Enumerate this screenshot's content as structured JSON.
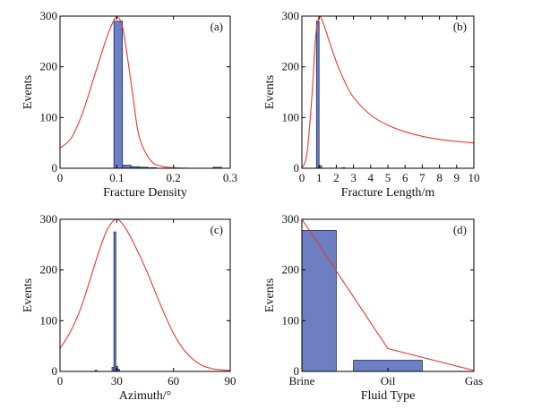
{
  "colors": {
    "bar": "#6b7fc2",
    "bar_stroke": "#1e2a5a",
    "curve": "#e8382f",
    "axis": "#000000"
  },
  "chart_data": [
    {
      "id": "a",
      "type": "bar",
      "panel_label": "(a)",
      "xlabel": "Fracture Density",
      "ylabel": "Events",
      "xlim": [
        0,
        0.3
      ],
      "ylim": [
        0,
        300
      ],
      "xticks": [
        0,
        0.1,
        0.2,
        0.3
      ],
      "xtick_labels": [
        "0",
        "0.1",
        "0.2",
        "0.3"
      ],
      "yticks": [
        0,
        100,
        200,
        300
      ],
      "ytick_labels": [
        "0",
        "100",
        "200",
        "300"
      ],
      "bars": [
        {
          "x0": 0.095,
          "x1": 0.11,
          "value": 290
        },
        {
          "x0": 0.11,
          "x1": 0.125,
          "value": 6
        },
        {
          "x0": 0.125,
          "x1": 0.14,
          "value": 3
        },
        {
          "x0": 0.14,
          "x1": 0.155,
          "value": 2
        },
        {
          "x0": 0.155,
          "x1": 0.17,
          "value": 1
        },
        {
          "x0": 0.27,
          "x1": 0.285,
          "value": 2
        }
      ],
      "curve": {
        "x": [
          0,
          0.02,
          0.04,
          0.06,
          0.08,
          0.09,
          0.1,
          0.11,
          0.12,
          0.13,
          0.14,
          0.16,
          0.18,
          0.2,
          0.23
        ],
        "y": [
          40,
          60,
          110,
          180,
          250,
          280,
          298,
          280,
          210,
          130,
          60,
          15,
          4,
          1,
          0
        ]
      }
    },
    {
      "id": "b",
      "type": "bar",
      "panel_label": "(b)",
      "xlabel": "Fracture Length/m",
      "ylabel": "Events",
      "xlim": [
        0,
        10
      ],
      "ylim": [
        0,
        300
      ],
      "xticks": [
        0,
        1,
        2,
        3,
        4,
        5,
        6,
        7,
        8,
        9,
        10
      ],
      "xtick_labels": [
        "0",
        "1",
        "2",
        "3",
        "4",
        "5",
        "6",
        "7",
        "8",
        "9",
        "10"
      ],
      "yticks": [
        0,
        100,
        200,
        300
      ],
      "ytick_labels": [
        "0",
        "100",
        "200",
        "300"
      ],
      "bars": [
        {
          "x0": 0.85,
          "x1": 1.0,
          "value": 290
        },
        {
          "x0": 1.0,
          "x1": 1.15,
          "value": 5
        },
        {
          "x0": 2.35,
          "x1": 2.5,
          "value": 1
        }
      ],
      "curve": {
        "x": [
          0,
          0.3,
          0.6,
          0.8,
          1.0,
          1.2,
          1.5,
          2,
          2.5,
          3,
          4,
          5,
          6,
          7,
          8,
          9,
          10
        ],
        "y": [
          0,
          30,
          150,
          260,
          298,
          290,
          260,
          210,
          170,
          140,
          105,
          85,
          72,
          63,
          57,
          53,
          50
        ]
      }
    },
    {
      "id": "c",
      "type": "bar",
      "panel_label": "(c)",
      "xlabel": "Azimuth/°",
      "ylabel": "Events",
      "xlim": [
        0,
        90
      ],
      "ylim": [
        0,
        300
      ],
      "xticks": [
        0,
        30,
        60,
        90
      ],
      "xtick_labels": [
        "0",
        "30",
        "60",
        "90"
      ],
      "yticks": [
        0,
        100,
        200,
        300
      ],
      "ytick_labels": [
        "0",
        "100",
        "200",
        "300"
      ],
      "bars": [
        {
          "x0": 18.5,
          "x1": 19.5,
          "value": 2
        },
        {
          "x0": 27.5,
          "x1": 28.5,
          "value": 8
        },
        {
          "x0": 28.5,
          "x1": 29.5,
          "value": 275
        },
        {
          "x0": 29.5,
          "x1": 30.5,
          "value": 10
        },
        {
          "x0": 30.5,
          "x1": 31.5,
          "value": 4
        }
      ],
      "curve": {
        "x": [
          0,
          5,
          10,
          15,
          20,
          25,
          30,
          35,
          40,
          45,
          50,
          55,
          60,
          65,
          70,
          75,
          80,
          85,
          90
        ],
        "y": [
          45,
          75,
          115,
          170,
          230,
          280,
          300,
          280,
          245,
          205,
          160,
          115,
          75,
          45,
          25,
          12,
          6,
          3,
          2
        ]
      }
    },
    {
      "id": "d",
      "type": "bar",
      "panel_label": "(d)",
      "xlabel": "Fluid Type",
      "ylabel": "Events",
      "categories": [
        "Brine",
        "Oil",
        "Gas"
      ],
      "ylim": [
        0,
        300
      ],
      "yticks": [
        0,
        100,
        200,
        300
      ],
      "ytick_labels": [
        "0",
        "100",
        "200",
        "300"
      ],
      "values": [
        278,
        22,
        0
      ],
      "curve": {
        "y": [
          300,
          45,
          2
        ]
      }
    }
  ]
}
